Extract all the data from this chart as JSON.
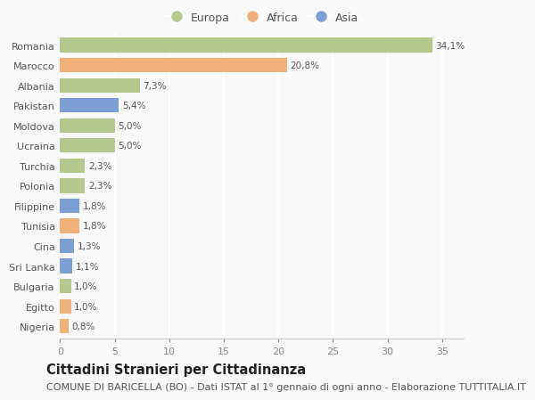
{
  "countries": [
    "Romania",
    "Marocco",
    "Albania",
    "Pakistan",
    "Moldova",
    "Ucraina",
    "Turchia",
    "Polonia",
    "Filippine",
    "Tunisia",
    "Cina",
    "Sri Lanka",
    "Bulgaria",
    "Egitto",
    "Nigeria"
  ],
  "values": [
    34.1,
    20.8,
    7.3,
    5.4,
    5.0,
    5.0,
    2.3,
    2.3,
    1.8,
    1.8,
    1.3,
    1.1,
    1.0,
    1.0,
    0.8
  ],
  "labels": [
    "34,1%",
    "20,8%",
    "7,3%",
    "5,4%",
    "5,0%",
    "5,0%",
    "2,3%",
    "2,3%",
    "1,8%",
    "1,8%",
    "1,3%",
    "1,1%",
    "1,0%",
    "1,0%",
    "0,8%"
  ],
  "continents": [
    "Europa",
    "Africa",
    "Europa",
    "Asia",
    "Europa",
    "Europa",
    "Europa",
    "Europa",
    "Asia",
    "Africa",
    "Asia",
    "Asia",
    "Europa",
    "Africa",
    "Africa"
  ],
  "colors": {
    "Europa": "#b5c98e",
    "Africa": "#f0b07a",
    "Asia": "#7b9fd4"
  },
  "legend_labels": [
    "Europa",
    "Africa",
    "Asia"
  ],
  "legend_colors": [
    "#b5c98e",
    "#f0b07a",
    "#7b9fd4"
  ],
  "title": "Cittadini Stranieri per Cittadinanza",
  "subtitle": "COMUNE DI BARICELLA (BO) - Dati ISTAT al 1° gennaio di ogni anno - Elaborazione TUTTITALIA.IT",
  "xlim": [
    0,
    37
  ],
  "xticks": [
    0,
    5,
    10,
    15,
    20,
    25,
    30,
    35
  ],
  "background_color": "#f9f9f9",
  "grid_color": "#ffffff",
  "bar_height": 0.72,
  "title_fontsize": 10.5,
  "subtitle_fontsize": 8,
  "label_fontsize": 7.5,
  "tick_fontsize": 8,
  "legend_fontsize": 9
}
